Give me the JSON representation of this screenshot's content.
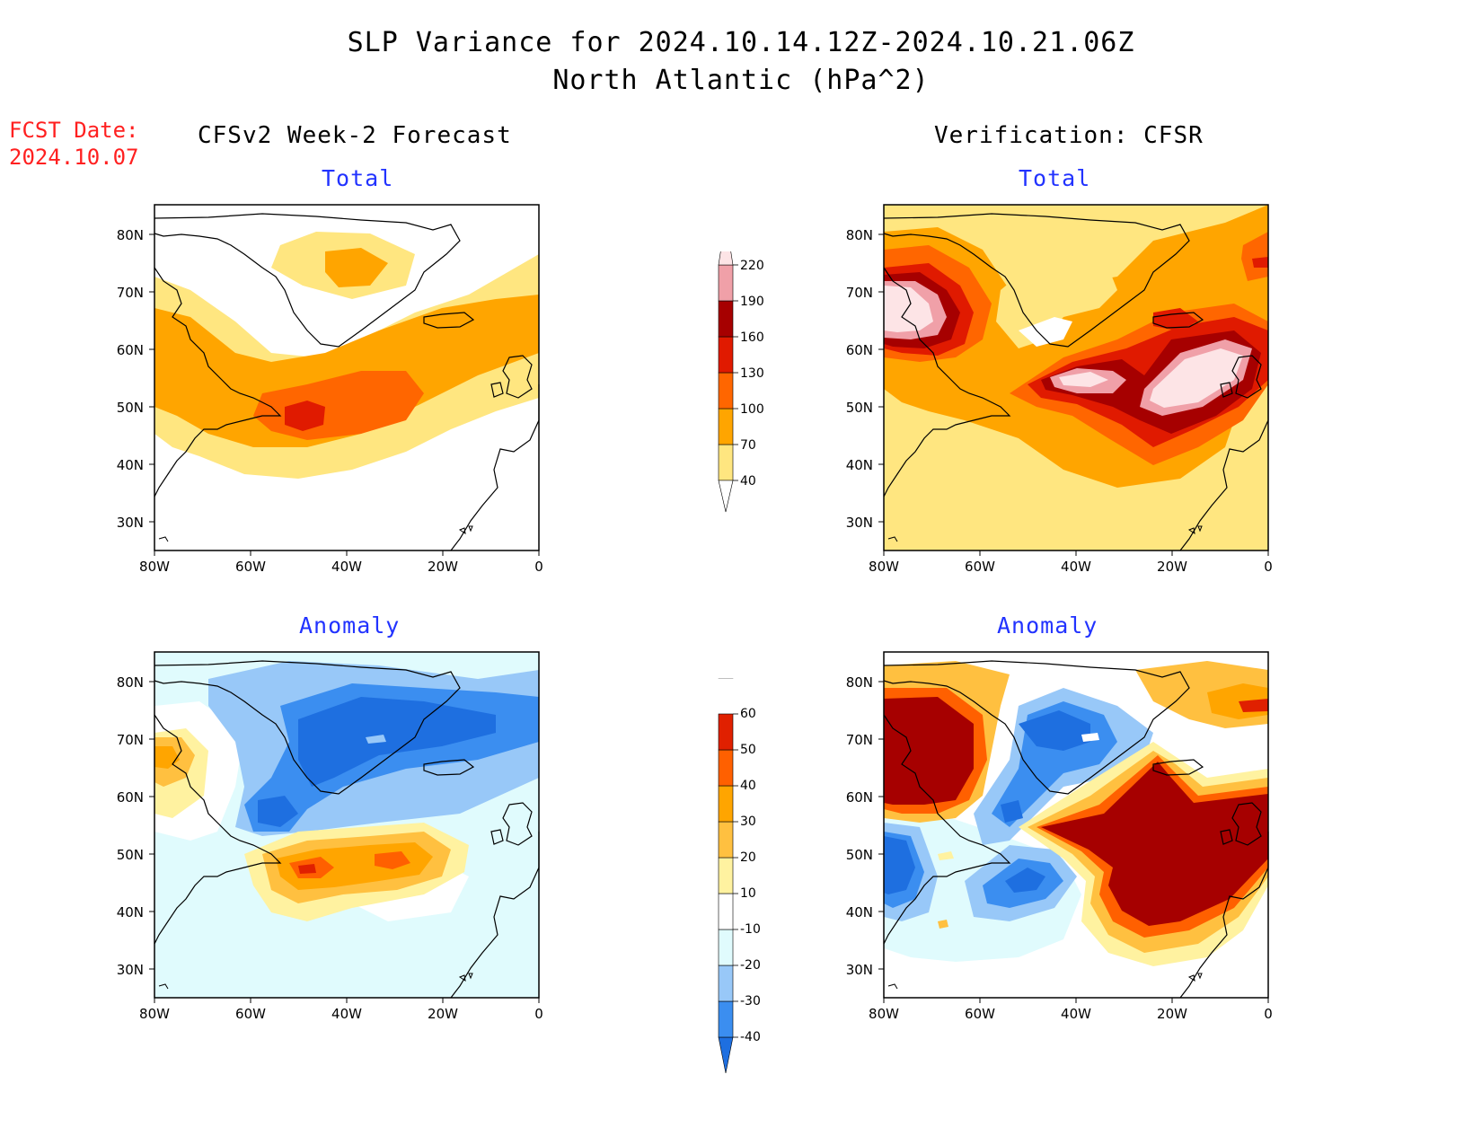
{
  "header": {
    "title_line1": "SLP Variance for 2024.10.14.12Z-2024.10.21.06Z",
    "title_line2": "North Atlantic (hPa^2)"
  },
  "fcst": {
    "label": "FCST Date:",
    "date": "2024.10.07"
  },
  "columns": {
    "left": "CFSv2 Week-2 Forecast",
    "right": "Verification: CFSR"
  },
  "panels": {
    "forecast_total": {
      "title": "Total"
    },
    "verification_total": {
      "title": "Total"
    },
    "forecast_anomaly": {
      "title": "Anomaly"
    },
    "verification_anomaly": {
      "title": "Anomaly"
    }
  },
  "axes": {
    "lat_labels": [
      "80N",
      "70N",
      "60N",
      "50N",
      "40N",
      "30N"
    ],
    "lon_labels": [
      "80W",
      "60W",
      "40W",
      "20W",
      "0"
    ],
    "lat_range": [
      25,
      85
    ],
    "lon_range": [
      -80,
      0
    ]
  },
  "colorbars": {
    "total": {
      "levels": [
        "40",
        "70",
        "100",
        "130",
        "160",
        "190",
        "220"
      ],
      "colors": [
        "#ffe680",
        "#ffa500",
        "#ff6600",
        "#e01a00",
        "#a60000",
        "#f0a0a8",
        "#fde4e6"
      ]
    },
    "anomaly": {
      "levels": [
        "-40",
        "-30",
        "-20",
        "-10",
        "10",
        "20",
        "30",
        "40",
        "50",
        "60"
      ],
      "colors": [
        "#1e6fe0",
        "#3b8ef0",
        "#98c8f8",
        "#e0fbfd",
        "#ffffff",
        "#fff2a0",
        "#ffc040",
        "#ffa500",
        "#ff6000",
        "#e02000",
        "#a60000"
      ]
    }
  }
}
